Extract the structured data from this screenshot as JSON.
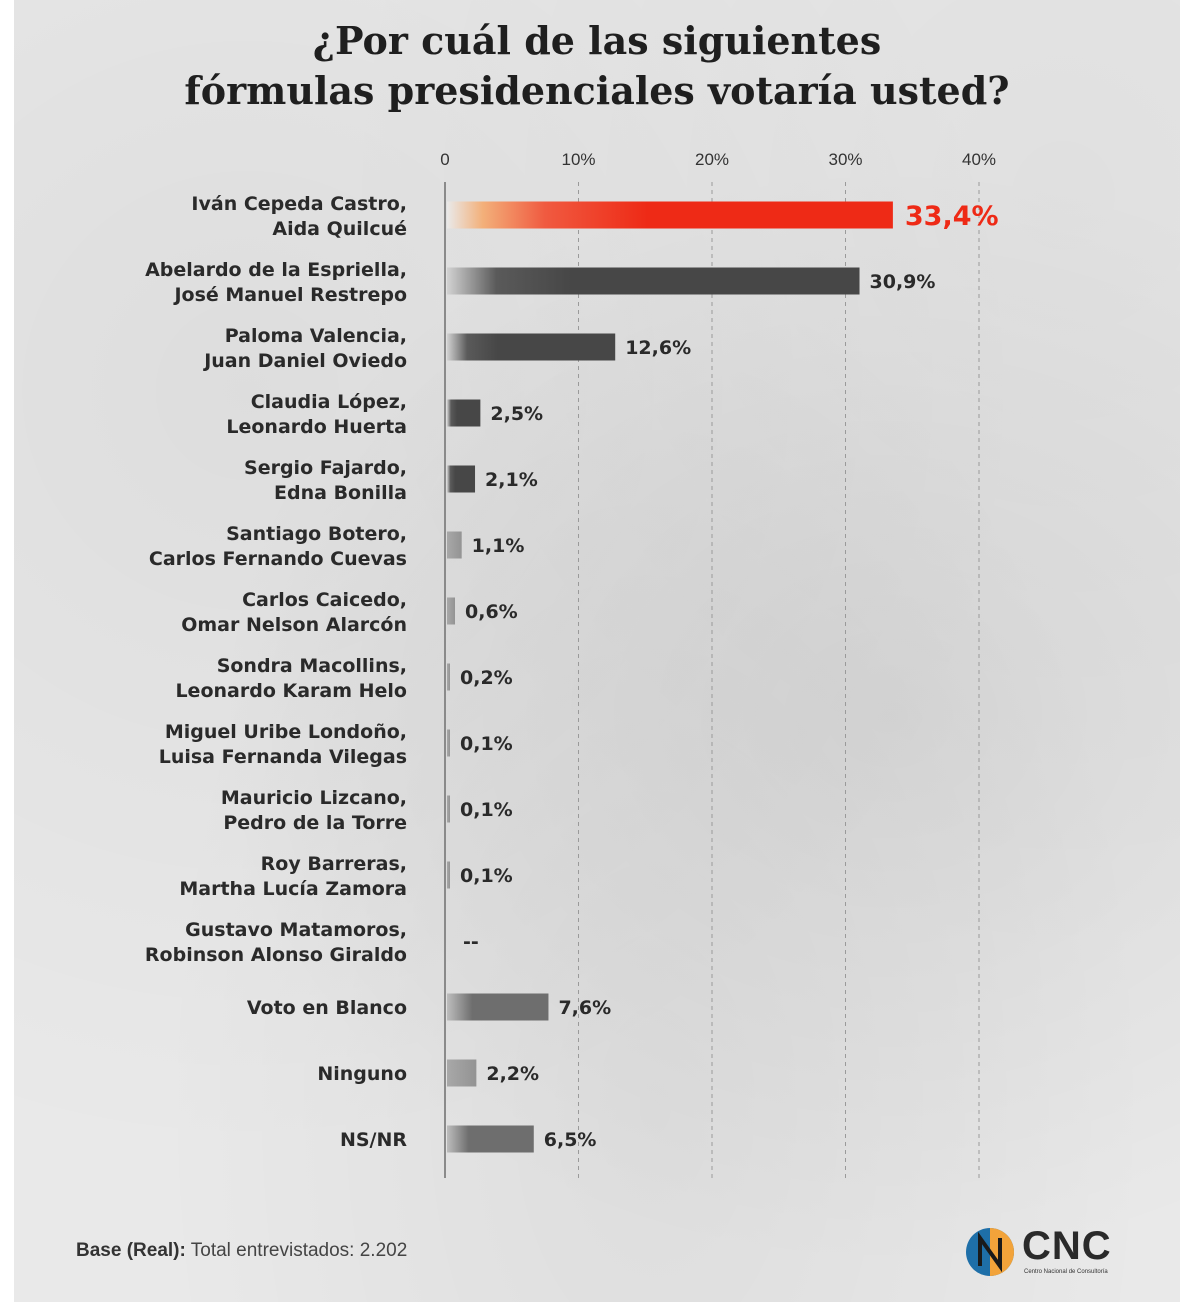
{
  "title_line1": "¿Por cuál de las siguientes",
  "title_line2": "fórmulas presidenciales votaría usted?",
  "base_label": "Base (Real):",
  "base_text": " Total entrevistados: 2.202",
  "logo": {
    "word": "CNC",
    "subtitle": "Centro Nacional de Consultoría"
  },
  "colors": {
    "highlight": "#ee2a16",
    "dark_bar": "#474747",
    "mid_bar": "#6e6e6e",
    "light_bar": "#969696",
    "text": "#2a2a2a",
    "logo_blue": "#1e6fa8",
    "logo_orange": "#f2a33a"
  },
  "chart_data": {
    "type": "bar",
    "orientation": "horizontal",
    "xlim": [
      0,
      40
    ],
    "xticks": [
      "0",
      "10%",
      "20%",
      "30%",
      "40%"
    ],
    "xtick_values": [
      0,
      10,
      20,
      30,
      40
    ],
    "grid": true,
    "categories": [
      [
        "Iván Cepeda Castro,",
        "Aida Quilcué"
      ],
      [
        "Abelardo de la Espriella,",
        "José Manuel Restrepo"
      ],
      [
        "Paloma Valencia,",
        "Juan Daniel Oviedo"
      ],
      [
        "Claudia López,",
        "Leonardo Huerta"
      ],
      [
        "Sergio Fajardo,",
        "Edna Bonilla"
      ],
      [
        "Santiago Botero,",
        "Carlos Fernando Cuevas"
      ],
      [
        "Carlos Caicedo,",
        "Omar Nelson Alarcón"
      ],
      [
        "Sondra Macollins,",
        "Leonardo Karam Helo"
      ],
      [
        "Miguel Uribe Londoño,",
        "Luisa Fernanda Vilegas"
      ],
      [
        "Mauricio Lizcano,",
        "Pedro de la Torre"
      ],
      [
        "Roy Barreras,",
        "Martha Lucía Zamora"
      ],
      [
        "Gustavo Matamoros,",
        "Robinson Alonso Giraldo"
      ],
      [
        "Voto en Blanco"
      ],
      [
        "Ninguno"
      ],
      [
        "NS/NR"
      ]
    ],
    "values": [
      33.4,
      30.9,
      12.6,
      2.5,
      2.1,
      1.1,
      0.6,
      0.2,
      0.1,
      0.1,
      0.1,
      null,
      7.6,
      2.2,
      6.5
    ],
    "value_labels": [
      "33,4%",
      "30,9%",
      "12,6%",
      "2,5%",
      "2,1%",
      "1,1%",
      "0,6%",
      "0,2%",
      "0,1%",
      "0,1%",
      "0,1%",
      "--",
      "7,6%",
      "2,2%",
      "6,5%"
    ],
    "bar_styles": [
      "highlight",
      "dark",
      "dark",
      "dark",
      "dark",
      "light",
      "light",
      "light",
      "light",
      "light",
      "light",
      "none",
      "mid",
      "light",
      "mid"
    ]
  }
}
